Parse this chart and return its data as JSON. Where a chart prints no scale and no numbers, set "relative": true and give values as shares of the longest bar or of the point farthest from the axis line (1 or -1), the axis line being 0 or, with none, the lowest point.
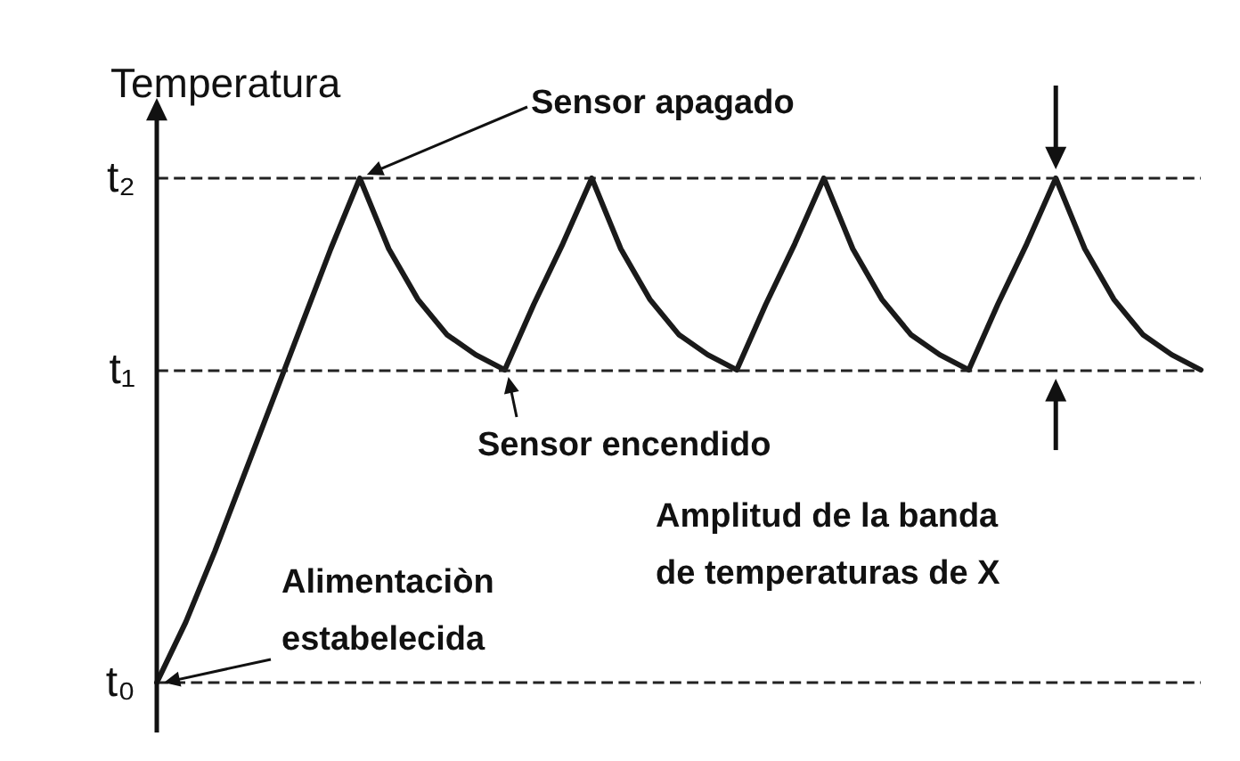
{
  "chart_data": {
    "type": "line",
    "ylabel": "Temperatura",
    "relative": true,
    "marker": "none",
    "line_style": "solid",
    "color": "#1a1a1a",
    "categories": [
      null,
      null,
      null,
      null,
      null,
      null,
      null,
      null,
      null,
      null,
      null,
      null,
      null,
      null,
      null,
      null,
      null,
      null,
      null,
      null,
      null,
      null,
      null,
      null,
      null,
      null,
      null,
      null,
      null,
      null,
      null,
      null,
      null,
      null,
      null,
      null,
      null
    ],
    "values": [
      0,
      0.12,
      0.26,
      0.41,
      0.56,
      0.71,
      0.86,
      1,
      0.86,
      0.76,
      0.69,
      0.65,
      0.62,
      0.75,
      0.87,
      1,
      0.86,
      0.76,
      0.69,
      0.65,
      0.62,
      0.75,
      0.87,
      1,
      0.86,
      0.76,
      0.69,
      0.65,
      0.62,
      0.75,
      0.87,
      1,
      0.86,
      0.76,
      0.69,
      0.65,
      0.62
    ],
    "ref_lines": [
      {
        "axis": "y",
        "value": 1,
        "label": "t₂",
        "line_style": "dashed"
      },
      {
        "axis": "y",
        "value": 0.62,
        "label": "t₁",
        "line_style": "dashed"
      },
      {
        "axis": "y",
        "value": 0,
        "label": "t₀",
        "line_style": "dashed"
      }
    ],
    "annotations": [
      "Sensor apagado",
      "Sensor encendido",
      "Amplitud de la banda\nde temperaturas de X",
      "Alimentaciòn\nestabelecida"
    ]
  }
}
